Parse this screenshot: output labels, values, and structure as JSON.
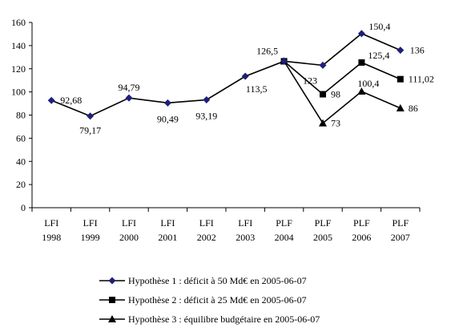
{
  "chart_data": {
    "type": "line",
    "categories": [
      [
        "LFI",
        "1998"
      ],
      [
        "LFI",
        "1999"
      ],
      [
        "LFI",
        "2000"
      ],
      [
        "LFI",
        "2001"
      ],
      [
        "LFI",
        "2002"
      ],
      [
        "LFI",
        "2003"
      ],
      [
        "PLF",
        "2004"
      ],
      [
        "PLF",
        "2005"
      ],
      [
        "PLF",
        "2006"
      ],
      [
        "PLF",
        "2007"
      ]
    ],
    "ylim": [
      0,
      160
    ],
    "yticks": [
      0,
      20,
      40,
      60,
      80,
      100,
      120,
      140,
      160
    ],
    "grid": false,
    "legend_position": "bottom",
    "series": [
      {
        "name": "Hypothèse 1 : déficit à 50 Md€ en 2005-06-07",
        "marker": "diamond",
        "color": "#1f1f7a",
        "values": [
          92.68,
          79.17,
          94.79,
          90.49,
          93.19,
          113.5,
          126.5,
          123,
          150.4,
          136
        ],
        "labels": [
          "92,68",
          "79,17",
          "94,79",
          "90,49",
          "93,19",
          "113,5",
          "126,5",
          "123",
          "150,4",
          "136"
        ]
      },
      {
        "name": "Hypothèse 2 : déficit à 25 Md€ en 2005-06-07",
        "marker": "square",
        "color": "#000000",
        "values": [
          null,
          null,
          null,
          null,
          null,
          null,
          126.5,
          98,
          125.4,
          111.02
        ],
        "labels": [
          null,
          null,
          null,
          null,
          null,
          null,
          null,
          "98",
          "125,4",
          "111,02"
        ]
      },
      {
        "name": "Hypothèse 3 : équilibre budgétaire en 2005-06-07",
        "marker": "triangle",
        "color": "#000000",
        "values": [
          null,
          null,
          null,
          null,
          null,
          null,
          126.5,
          73,
          100.4,
          86
        ],
        "labels": [
          null,
          null,
          null,
          null,
          null,
          null,
          null,
          "73",
          "100,4",
          "86"
        ]
      }
    ]
  }
}
